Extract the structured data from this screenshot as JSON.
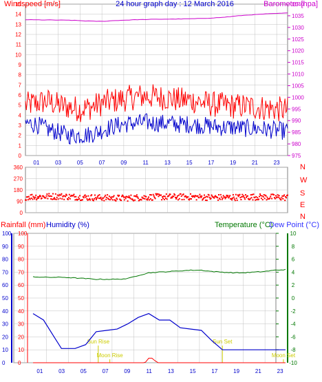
{
  "colors": {
    "frame": "#808080",
    "grid": "#c0c0c0",
    "windspeed": "#ff0000",
    "gust": "#ff0000",
    "average": "#0000cc",
    "barometer": "#cc00cc",
    "direction": "#ff0000",
    "compass": "#ff0000",
    "rainfall": "#ff0000",
    "humidity": "#0000cc",
    "temperature": "#007700",
    "dewpoint": "#3333ff",
    "hour_labels": "#0000cc",
    "astro": "#cccc00"
  },
  "chart_data": [
    {
      "type": "line",
      "title": "24 hour graph day : 12 March 2016",
      "y_left_label": "Windspeed [m/s]",
      "y_right_label": "Barometer [hpa]",
      "y_left_range": [
        0,
        15
      ],
      "y_left_ticks": [
        "0",
        "1",
        "2",
        "3",
        "4",
        "5",
        "6",
        "7",
        "8",
        "9",
        "10",
        "11",
        "12",
        "13",
        "14",
        "15"
      ],
      "y_right_range": [
        975,
        1040
      ],
      "y_right_ticks": [
        "975",
        "980",
        "985",
        "990",
        "995",
        "1000",
        "1005",
        "1010",
        "1015",
        "1020",
        "1025",
        "1030",
        "1035",
        "1040"
      ],
      "x_range": [
        0,
        24
      ],
      "x_ticks": [
        "01",
        "03",
        "05",
        "07",
        "09",
        "11",
        "13",
        "15",
        "17",
        "19",
        "21",
        "23"
      ],
      "series": [
        {
          "x": [
            0,
            1,
            2,
            3,
            4,
            5,
            6,
            7,
            8,
            9,
            10,
            11,
            12,
            13,
            14,
            15,
            16,
            17,
            18,
            19,
            20,
            21,
            22,
            23,
            24
          ],
          "values": [
            5.0,
            5.2,
            5.4,
            5.0,
            4.8,
            4.6,
            4.8,
            5.2,
            5.4,
            5.6,
            5.8,
            5.9,
            5.8,
            5.7,
            5.5,
            5.5,
            5.3,
            5.1,
            5.0,
            4.9,
            4.9,
            4.8,
            4.7,
            4.6,
            4.5
          ]
        },
        {
          "x": [
            0,
            1,
            2,
            3,
            4,
            5,
            6,
            7,
            8,
            9,
            10,
            11,
            12,
            13,
            14,
            15,
            16,
            17,
            18,
            19,
            20,
            21,
            22,
            23,
            24
          ],
          "values": [
            3.2,
            3.1,
            2.6,
            2.3,
            2.0,
            2.0,
            2.1,
            2.5,
            2.9,
            3.1,
            3.2,
            3.3,
            3.2,
            3.2,
            3.1,
            3.1,
            3.0,
            2.9,
            2.8,
            2.8,
            2.7,
            2.7,
            2.6,
            2.5,
            2.4
          ]
        },
        {
          "x": [
            0,
            2,
            4,
            6,
            7,
            8,
            10,
            12,
            14,
            16,
            18,
            20,
            22,
            24
          ],
          "values": [
            1033.3,
            1033.2,
            1033.1,
            1032.7,
            1032.6,
            1032.9,
            1033.3,
            1033.5,
            1033.6,
            1033.8,
            1034.3,
            1035.2,
            1035.8,
            1036.2
          ]
        }
      ]
    },
    {
      "type": "scatter",
      "y_range": [
        0,
        360
      ],
      "y_ticks": [
        "0",
        "90",
        "180",
        "270",
        "360"
      ],
      "compass_labels": [
        "N",
        "W",
        "S",
        "E",
        "N"
      ],
      "x_range": [
        0,
        24
      ],
      "x_ticks": [
        "01",
        "03",
        "05",
        "07",
        "09",
        "11",
        "13",
        "15",
        "17",
        "19",
        "21",
        "23"
      ],
      "series": [
        {
          "x": [
            0,
            3,
            6,
            9,
            12,
            15,
            18,
            21,
            24
          ],
          "values": [
            125,
            130,
            120,
            115,
            125,
            125,
            120,
            125,
            120
          ]
        }
      ]
    },
    {
      "type": "line",
      "labels": {
        "rainfall": "Rainfall (mm)",
        "humidity": "Humidity (%)",
        "temperature": "Temperature (°C)",
        "dewpoint": "Dew Point (°C)"
      },
      "y_left_range": [
        0,
        100
      ],
      "y_left_ticks": [
        "0",
        "10",
        "20",
        "30",
        "40",
        "50",
        "60",
        "70",
        "80",
        "90",
        "100"
      ],
      "y_right_range": [
        -10,
        10
      ],
      "y_right_ticks": [
        "-10",
        "-8",
        "-6",
        "-4",
        "-2",
        "0",
        "2",
        "4",
        "6",
        "8",
        "10"
      ],
      "x_range": [
        0,
        24
      ],
      "x_ticks": [
        "01",
        "03",
        "05",
        "07",
        "09",
        "11",
        "13",
        "15",
        "17",
        "19",
        "21",
        "23"
      ],
      "series": [
        {
          "x": [
            0,
            1,
            2,
            3,
            4,
            5,
            6,
            7,
            8,
            9,
            10,
            11,
            12,
            13,
            14,
            15,
            16,
            17,
            18,
            19,
            20,
            21,
            22,
            23,
            24
          ],
          "values": [
            3.3,
            3.2,
            3.2,
            3.2,
            3.1,
            3.0,
            2.9,
            2.9,
            2.9,
            3.0,
            3.5,
            3.9,
            4.0,
            4.1,
            4.2,
            4.3,
            4.3,
            4.1,
            4.0,
            3.9,
            3.9,
            4.0,
            4.1,
            4.3,
            4.4
          ]
        },
        {
          "x": [
            0,
            1,
            2,
            2.7,
            3,
            4,
            5,
            6,
            7,
            8,
            9,
            10,
            11,
            12,
            13,
            14,
            15,
            16,
            17,
            18,
            19,
            20,
            21,
            22,
            23,
            24
          ],
          "values": [
            38,
            33,
            20,
            11,
            11,
            11,
            14,
            24,
            25,
            26,
            30,
            35,
            38,
            33,
            33,
            27,
            26,
            25,
            17,
            10,
            10,
            10,
            10,
            10,
            10,
            10
          ]
        },
        {
          "x": [
            0,
            10.5,
            10.7,
            11.0,
            11.3,
            11.6,
            11.9,
            24
          ],
          "values": [
            0,
            0,
            0.5,
            3.5,
            3.5,
            1.5,
            0,
            0
          ]
        }
      ],
      "annotations": {
        "sun_rise": "Sun Rise",
        "moon_rise": "Moon Rise",
        "sun_set": "Sun Set",
        "moon_set": "Moon Set",
        "sun_rise_hour": 6.2,
        "moon_rise_hour": 7.3,
        "sun_set_hour": 18.0,
        "moon_set_hour": 23.8
      }
    }
  ]
}
